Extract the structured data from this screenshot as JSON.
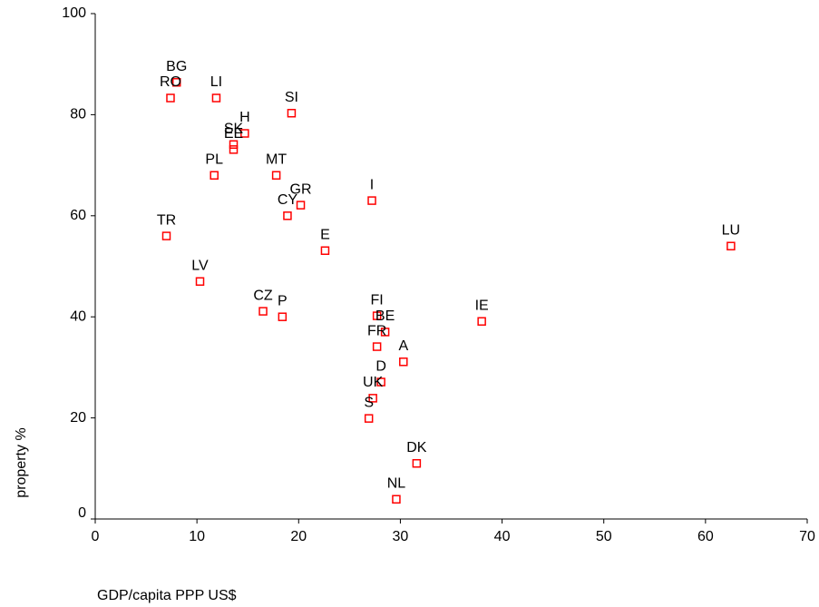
{
  "chart_data": {
    "type": "scatter",
    "x_label": "GDP/capita PPP US$",
    "y_label": "property %",
    "labels": [
      "BG",
      "RO",
      "LI",
      "SI",
      "H",
      "SK",
      "EE",
      "PL",
      "MT",
      "I",
      "GR",
      "CY",
      "TR",
      "LU",
      "E",
      "LV",
      "CZ",
      "P",
      "FI",
      "IE",
      "BE",
      "FR",
      "A",
      "D",
      "UK",
      "S",
      "DK",
      "NL"
    ],
    "x": [
      8.0,
      7.4,
      11.9,
      19.3,
      14.7,
      13.6,
      13.6,
      11.7,
      17.8,
      27.2,
      20.2,
      18.9,
      7.0,
      62.5,
      22.6,
      10.3,
      16.5,
      18.4,
      27.7,
      38.0,
      28.5,
      27.7,
      30.3,
      28.1,
      27.3,
      26.9,
      31.6,
      29.6
    ],
    "values": [
      86.4,
      83.3,
      83.3,
      80.3,
      76.3,
      74.1,
      73.1,
      68.0,
      68.0,
      63.0,
      62.1,
      60.0,
      56.0,
      54.0,
      53.1,
      47.0,
      41.1,
      40.0,
      40.2,
      39.1,
      37.0,
      34.1,
      31.1,
      27.1,
      23.9,
      19.9,
      11.0,
      3.9
    ],
    "color": "#ff0000",
    "xlim": [
      0,
      70
    ],
    "xticks": [
      0,
      10,
      20,
      30,
      40,
      50,
      60,
      70
    ],
    "ylim": [
      0,
      100
    ],
    "yticks": [
      0,
      20,
      40,
      60,
      80,
      100
    ]
  }
}
